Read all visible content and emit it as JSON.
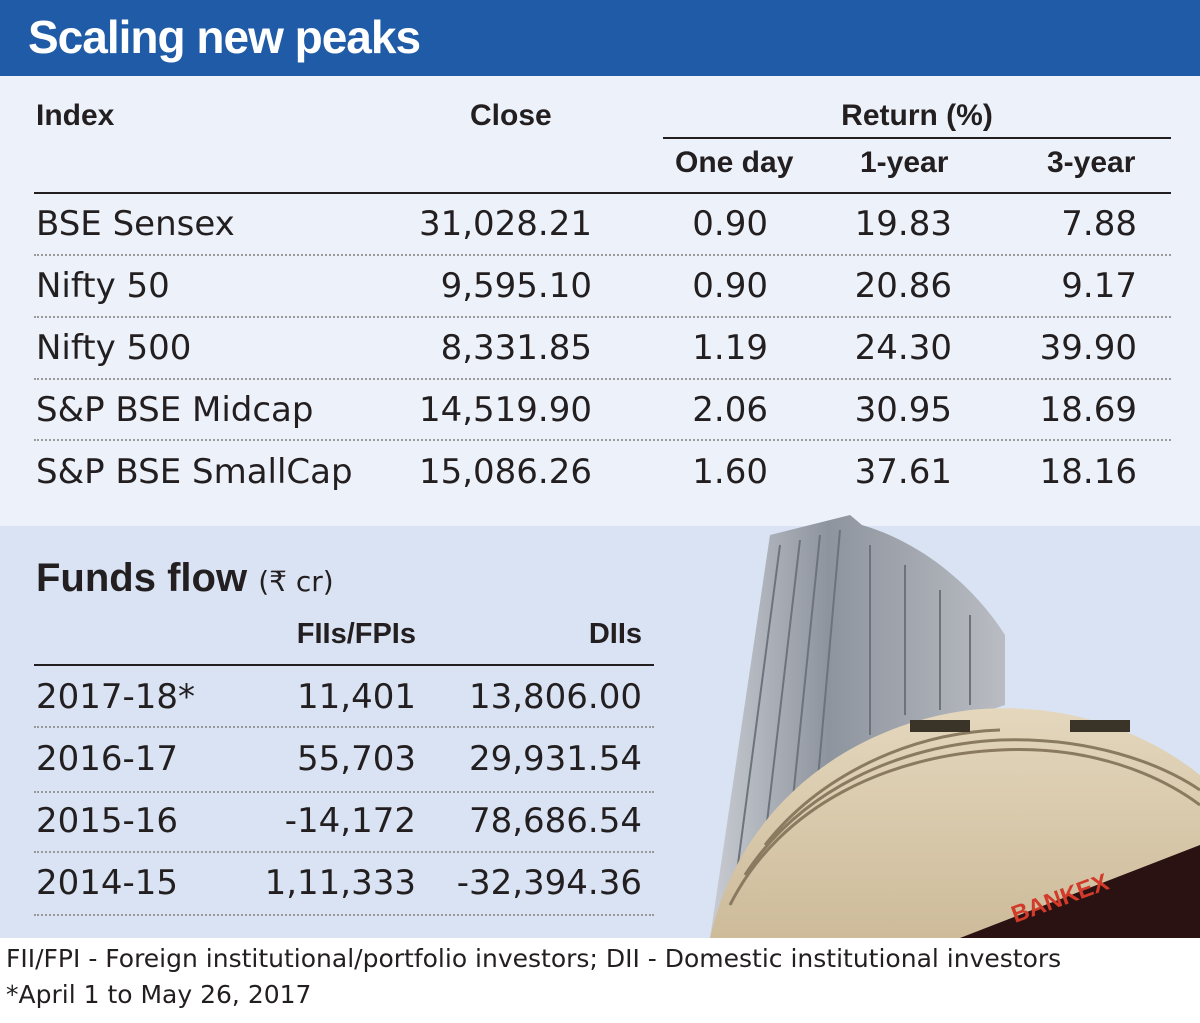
{
  "title": "Scaling new peaks",
  "index_table": {
    "headers": {
      "index": "Index",
      "close": "Close",
      "return_group": "Return (%)",
      "one_day": "One day",
      "one_year": "1-year",
      "three_year": "3-year"
    },
    "rows": [
      {
        "index": "BSE Sensex",
        "close": "31,028.21",
        "one_day": "0.90",
        "one_year": "19.83",
        "three_year": "7.88"
      },
      {
        "index": "Nifty 50",
        "close": "9,595.10",
        "one_day": "0.90",
        "one_year": "20.86",
        "three_year": "9.17"
      },
      {
        "index": "Nifty 500",
        "close": "8,331.85",
        "one_day": "1.19",
        "one_year": "24.30",
        "three_year": "39.90"
      },
      {
        "index": "S&P BSE Midcap",
        "close": "14,519.90",
        "one_day": "2.06",
        "one_year": "30.95",
        "three_year": "18.69"
      },
      {
        "index": "S&P BSE SmallCap",
        "close": "15,086.26",
        "one_day": "1.60",
        "one_year": "37.61",
        "three_year": "18.16"
      }
    ]
  },
  "funds_flow": {
    "title": "Funds flow",
    "unit": "(₹ cr)",
    "headers": {
      "fii": "FIIs/FPIs",
      "dii": "DIIs"
    },
    "rows": [
      {
        "year": "2017-18*",
        "fii": "11,401",
        "dii": "13,806.00"
      },
      {
        "year": "2016-17",
        "fii": "55,703",
        "dii": "29,931.54"
      },
      {
        "year": "2015-16",
        "fii": "-14,172",
        "dii": "78,686.54"
      },
      {
        "year": "2014-15",
        "fii": "1,11,333",
        "dii": "-32,394.36"
      }
    ]
  },
  "footnotes": {
    "line1": "FII/FPI - Foreign institutional/portfolio investors; DII - Domestic institutional investors",
    "line2": "*April 1 to May 26, 2017"
  },
  "photo": {
    "ticker_text": "BANKEX"
  },
  "colors": {
    "header_bg": "#1f5ba6",
    "panel_top": "#edf2fa",
    "panel_bottom": "#d9e3f3"
  }
}
